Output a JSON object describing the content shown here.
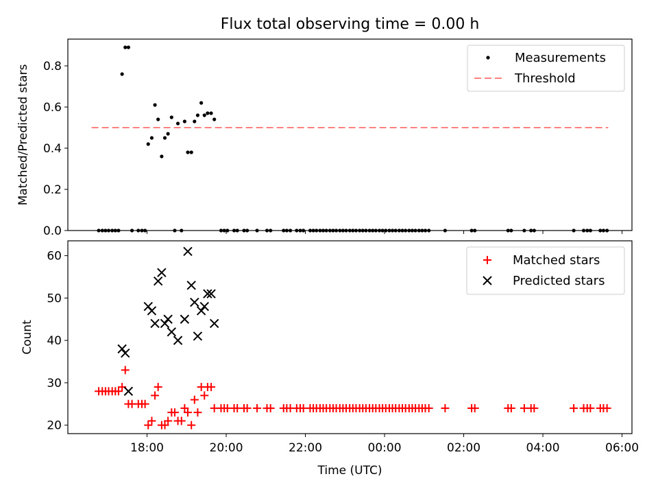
{
  "chart_data": {
    "title": "Flux total observing time = 0.00 h",
    "x_ticks": [
      "18:00",
      "20:00",
      "22:00",
      "00:00",
      "02:00",
      "04:00",
      "06:00"
    ],
    "xlabel": "Time (UTC)",
    "xlim_hours": [
      16.0,
      30.25
    ],
    "panels": [
      {
        "type": "scatter",
        "ylabel": "Matched/Predicted stars",
        "ylim": [
          0,
          0.93
        ],
        "y_ticks": [
          "0.0",
          "0.2",
          "0.4",
          "0.6",
          "0.8"
        ],
        "grid": false,
        "legend_position": "upper right",
        "series": [
          {
            "name": "Measurements",
            "marker": "dot",
            "color": "#000000",
            "x": [
              16.78,
              16.87,
              16.95,
              17.03,
              17.12,
              17.2,
              17.28,
              17.37,
              17.45,
              17.53,
              17.62,
              17.78,
              17.87,
              17.95,
              18.03,
              18.12,
              18.2,
              18.28,
              18.37,
              18.45,
              18.53,
              18.62,
              18.7,
              18.78,
              18.87,
              18.95,
              19.03,
              19.12,
              19.2,
              19.28,
              19.37,
              19.45,
              19.53,
              19.62,
              19.7,
              19.87,
              19.95,
              20.03,
              20.2,
              20.28,
              20.45,
              20.53,
              20.78,
              21.03,
              21.12,
              21.45,
              21.53,
              21.62,
              21.78,
              21.87,
              21.95,
              22.12,
              22.2,
              22.28,
              22.37,
              22.45,
              22.53,
              22.62,
              22.7,
              22.78,
              22.87,
              22.95,
              23.03,
              23.12,
              23.2,
              23.28,
              23.37,
              23.45,
              23.53,
              23.62,
              23.7,
              23.78,
              23.87,
              23.95,
              24.03,
              24.12,
              24.2,
              24.28,
              24.37,
              24.45,
              24.53,
              24.62,
              24.7,
              24.78,
              24.87,
              24.95,
              25.03,
              25.12,
              25.53,
              26.2,
              26.28,
              27.12,
              27.2,
              27.53,
              27.7,
              27.78,
              28.78,
              29.03,
              29.12,
              29.2,
              29.45,
              29.53,
              29.62
            ],
            "y": [
              0.0,
              0.0,
              0.0,
              0.0,
              0.0,
              0.0,
              0.0,
              0.76,
              0.89,
              0.89,
              0.0,
              0.0,
              0.0,
              0.0,
              0.42,
              0.45,
              0.61,
              0.54,
              0.36,
              0.45,
              0.47,
              0.55,
              0.0,
              0.52,
              0.0,
              0.53,
              0.38,
              0.38,
              0.53,
              0.56,
              0.62,
              0.56,
              0.57,
              0.57,
              0.54,
              0.0,
              0.0,
              0.0,
              0.0,
              0.0,
              0.0,
              0.0,
              0.0,
              0.0,
              0.0,
              0.0,
              0.0,
              0.0,
              0.0,
              0.0,
              0.0,
              0.0,
              0.0,
              0.0,
              0.0,
              0.0,
              0.0,
              0.0,
              0.0,
              0.0,
              0.0,
              0.0,
              0.0,
              0.0,
              0.0,
              0.0,
              0.0,
              0.0,
              0.0,
              0.0,
              0.0,
              0.0,
              0.0,
              0.0,
              0.0,
              0.0,
              0.0,
              0.0,
              0.0,
              0.0,
              0.0,
              0.0,
              0.0,
              0.0,
              0.0,
              0.0,
              0.0,
              0.0,
              0.0,
              0.0,
              0.0,
              0.0,
              0.0,
              0.0,
              0.0,
              0.0,
              0.0,
              0.0,
              0.0,
              0.0,
              0.0,
              0.0,
              0.0
            ]
          },
          {
            "name": "Threshold",
            "type": "line",
            "style": "dashed",
            "color": "#ff8080",
            "x": [
              16.6,
              29.65
            ],
            "y": [
              0.5,
              0.5
            ]
          }
        ]
      },
      {
        "type": "scatter",
        "ylabel": "Count",
        "ylim": [
          18,
          63.5
        ],
        "y_ticks": [
          "20",
          "30",
          "40",
          "50",
          "60"
        ],
        "grid": false,
        "legend_position": "upper right",
        "series": [
          {
            "name": "Matched stars",
            "marker": "plus",
            "color": "#ff0000",
            "x": [
              16.78,
              16.87,
              16.95,
              17.03,
              17.12,
              17.2,
              17.28,
              17.37,
              17.45,
              17.53,
              17.62,
              17.78,
              17.87,
              17.95,
              18.03,
              18.12,
              18.2,
              18.28,
              18.37,
              18.45,
              18.53,
              18.62,
              18.7,
              18.78,
              18.87,
              18.95,
              19.03,
              19.12,
              19.2,
              19.28,
              19.37,
              19.45,
              19.53,
              19.62,
              19.7,
              19.87,
              19.95,
              20.03,
              20.2,
              20.28,
              20.45,
              20.53,
              20.78,
              21.03,
              21.12,
              21.45,
              21.53,
              21.62,
              21.78,
              21.87,
              21.95,
              22.12,
              22.2,
              22.28,
              22.37,
              22.45,
              22.53,
              22.62,
              22.7,
              22.78,
              22.87,
              22.95,
              23.03,
              23.12,
              23.2,
              23.28,
              23.37,
              23.45,
              23.53,
              23.62,
              23.7,
              23.78,
              23.87,
              23.95,
              24.03,
              24.12,
              24.2,
              24.28,
              24.37,
              24.45,
              24.53,
              24.62,
              24.7,
              24.78,
              24.87,
              24.95,
              25.03,
              25.12,
              25.53,
              26.2,
              26.28,
              27.12,
              27.2,
              27.53,
              27.7,
              27.78,
              28.78,
              29.03,
              29.12,
              29.2,
              29.45,
              29.53,
              29.62
            ],
            "y": [
              28,
              28,
              28,
              28,
              28,
              28,
              28,
              29,
              33,
              25,
              25,
              25,
              25,
              25,
              20,
              21,
              27,
              29,
              20,
              20,
              21,
              23,
              23,
              21,
              21,
              24,
              23,
              20,
              26,
              23,
              29,
              27,
              29,
              29,
              24,
              24,
              24,
              24,
              24,
              24,
              24,
              24,
              24,
              24,
              24,
              24,
              24,
              24,
              24,
              24,
              24,
              24,
              24,
              24,
              24,
              24,
              24,
              24,
              24,
              24,
              24,
              24,
              24,
              24,
              24,
              24,
              24,
              24,
              24,
              24,
              24,
              24,
              24,
              24,
              24,
              24,
              24,
              24,
              24,
              24,
              24,
              24,
              24,
              24,
              24,
              24,
              24,
              24,
              24,
              24,
              24,
              24,
              24,
              24,
              24,
              24,
              24,
              24,
              24,
              24,
              24,
              24,
              24
            ]
          },
          {
            "name": "Predicted stars",
            "marker": "x",
            "color": "#000000",
            "x": [
              17.37,
              17.45,
              17.53,
              18.03,
              18.12,
              18.2,
              18.28,
              18.37,
              18.45,
              18.53,
              18.62,
              18.78,
              18.95,
              19.03,
              19.12,
              19.2,
              19.28,
              19.37,
              19.45,
              19.53,
              19.62,
              19.7
            ],
            "y": [
              38,
              37,
              28,
              48,
              47,
              44,
              54,
              56,
              44,
              45,
              42,
              40,
              45,
              61,
              53,
              49,
              41,
              47,
              48,
              51,
              51,
              44
            ]
          }
        ]
      }
    ]
  }
}
